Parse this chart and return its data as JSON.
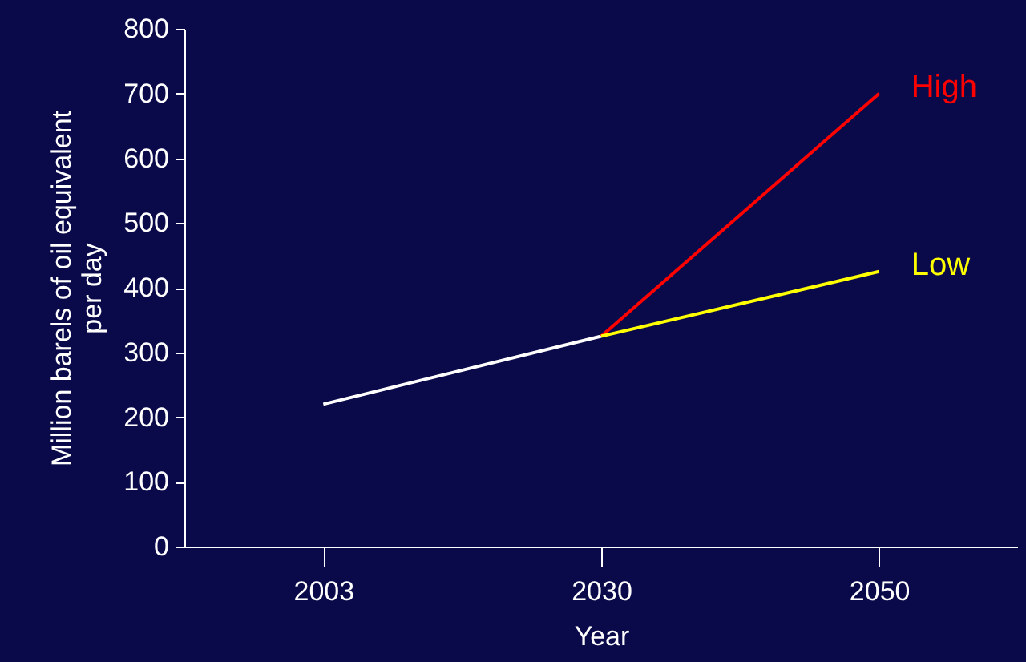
{
  "chart_data": {
    "type": "line",
    "xlabel": "Year",
    "ylabel": "Million barels of oil equivalent per day",
    "categories": [
      "2003",
      "2030",
      "2050"
    ],
    "series": [
      {
        "color": "#ffffff",
        "values": [
          220,
          325,
          null
        ]
      },
      {
        "name": "High",
        "color": "#ff0000",
        "values": [
          null,
          325,
          700
        ]
      },
      {
        "name": "Low",
        "color": "#ffff00",
        "values": [
          null,
          325,
          425
        ]
      }
    ],
    "ylim": [
      0,
      800
    ],
    "yticks": [
      0,
      100,
      200,
      300,
      400,
      500,
      600,
      700,
      800
    ],
    "grid": false,
    "marker": "none",
    "line_style": "solid"
  }
}
